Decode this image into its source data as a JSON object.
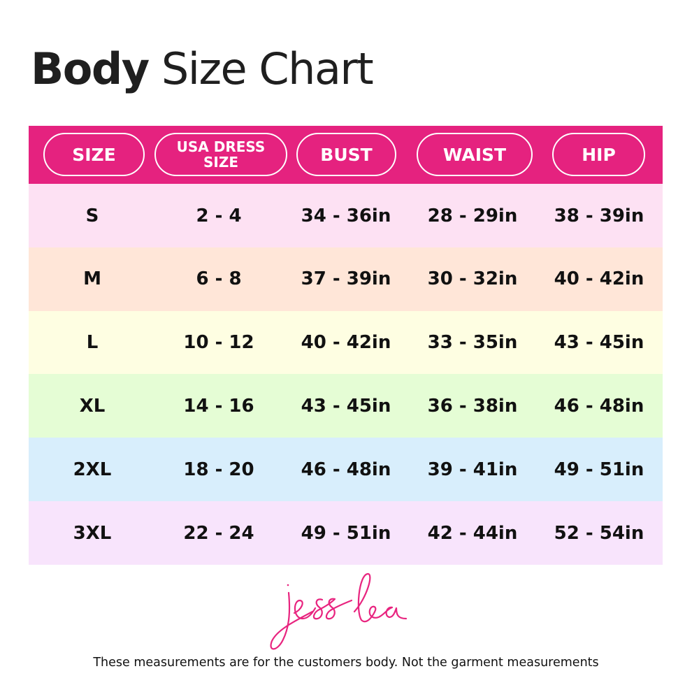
{
  "title": {
    "bold": "Body",
    "regular": "Size Chart"
  },
  "colors": {
    "header": "#e5227f",
    "rows": [
      "#fde1f3",
      "#ffe6d8",
      "#fefee2",
      "#e5fdd5",
      "#d8eefc",
      "#f8e4fc"
    ]
  },
  "headers": [
    "SIZE",
    "USA DRESS SIZE",
    "BUST",
    "WAIST",
    "HIP"
  ],
  "rows": [
    [
      "S",
      "2 - 4",
      "34 - 36in",
      "28 - 29in",
      "38 - 39in"
    ],
    [
      "M",
      "6 - 8",
      "37 - 39in",
      "30 - 32in",
      "40 - 42in"
    ],
    [
      "L",
      "10 - 12",
      "40 - 42in",
      "33 - 35in",
      "43 - 45in"
    ],
    [
      "XL",
      "14 - 16",
      "43 - 45in",
      "36 - 38in",
      "46 - 48in"
    ],
    [
      "2XL",
      "18 - 20",
      "46 - 48in",
      "39 - 41in",
      "49 - 51in"
    ],
    [
      "3XL",
      "22 - 24",
      "49 - 51in",
      "42 - 44in",
      "52 - 54in"
    ]
  ],
  "logo": "jess lea",
  "note": "These measurements are for the customers body. Not the garment measurements"
}
